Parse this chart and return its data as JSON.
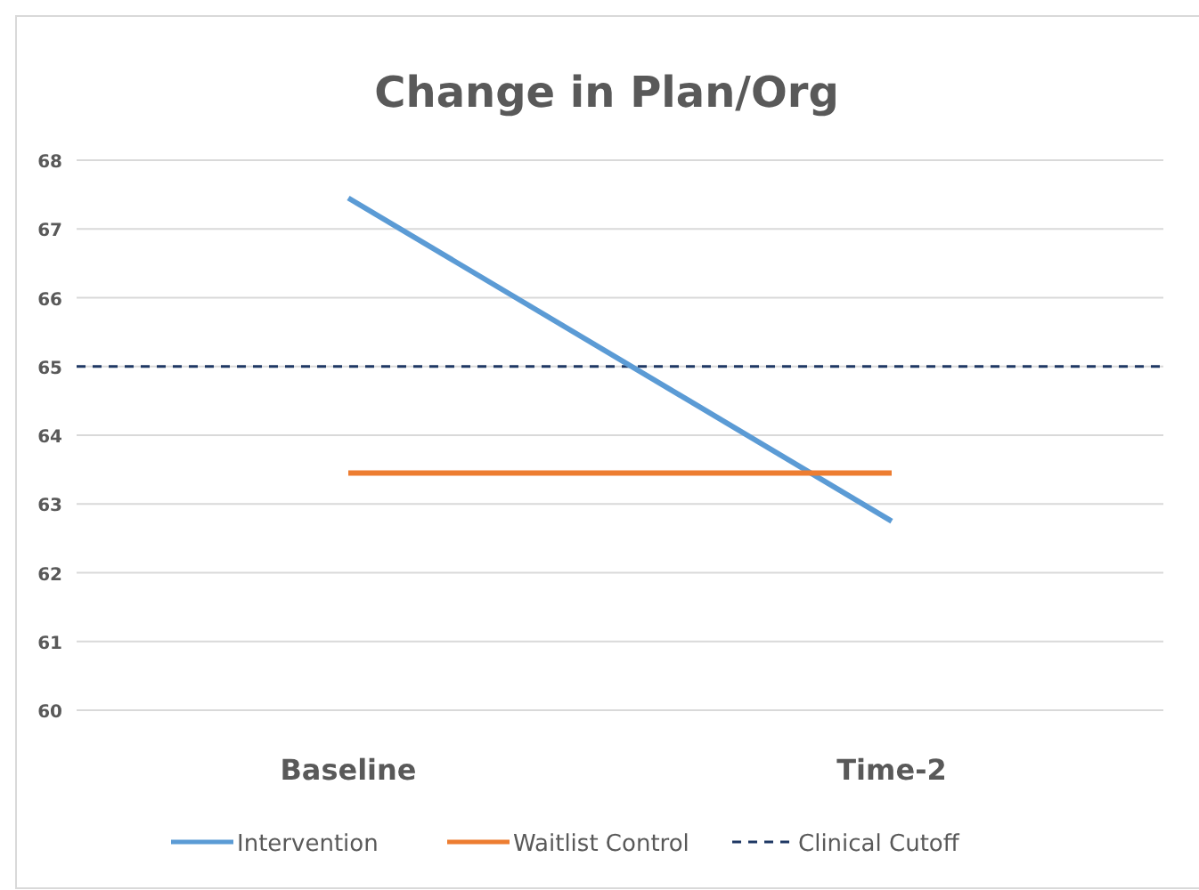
{
  "chart_data": {
    "type": "line",
    "title": "Change in Plan/Org",
    "categories": [
      "Baseline",
      "Time-2"
    ],
    "series": [
      {
        "name": "Intervention",
        "color": "#5b9bd5",
        "values": [
          67.45,
          62.75
        ]
      },
      {
        "name": "Waitlist Control",
        "color": "#ed7d31",
        "values": [
          63.45,
          63.45
        ]
      }
    ],
    "ylim": [
      60,
      68
    ],
    "yticks": [
      60,
      61,
      62,
      63,
      64,
      65,
      66,
      67,
      68
    ],
    "grid": "y",
    "legend": "bottom",
    "line_style": "solid",
    "marker": "none",
    "ref_lines": [
      {
        "axis": "y",
        "value": 65,
        "label": "Clinical Cutoff",
        "color": "#1f3864",
        "line_style": "dashed"
      }
    ]
  }
}
